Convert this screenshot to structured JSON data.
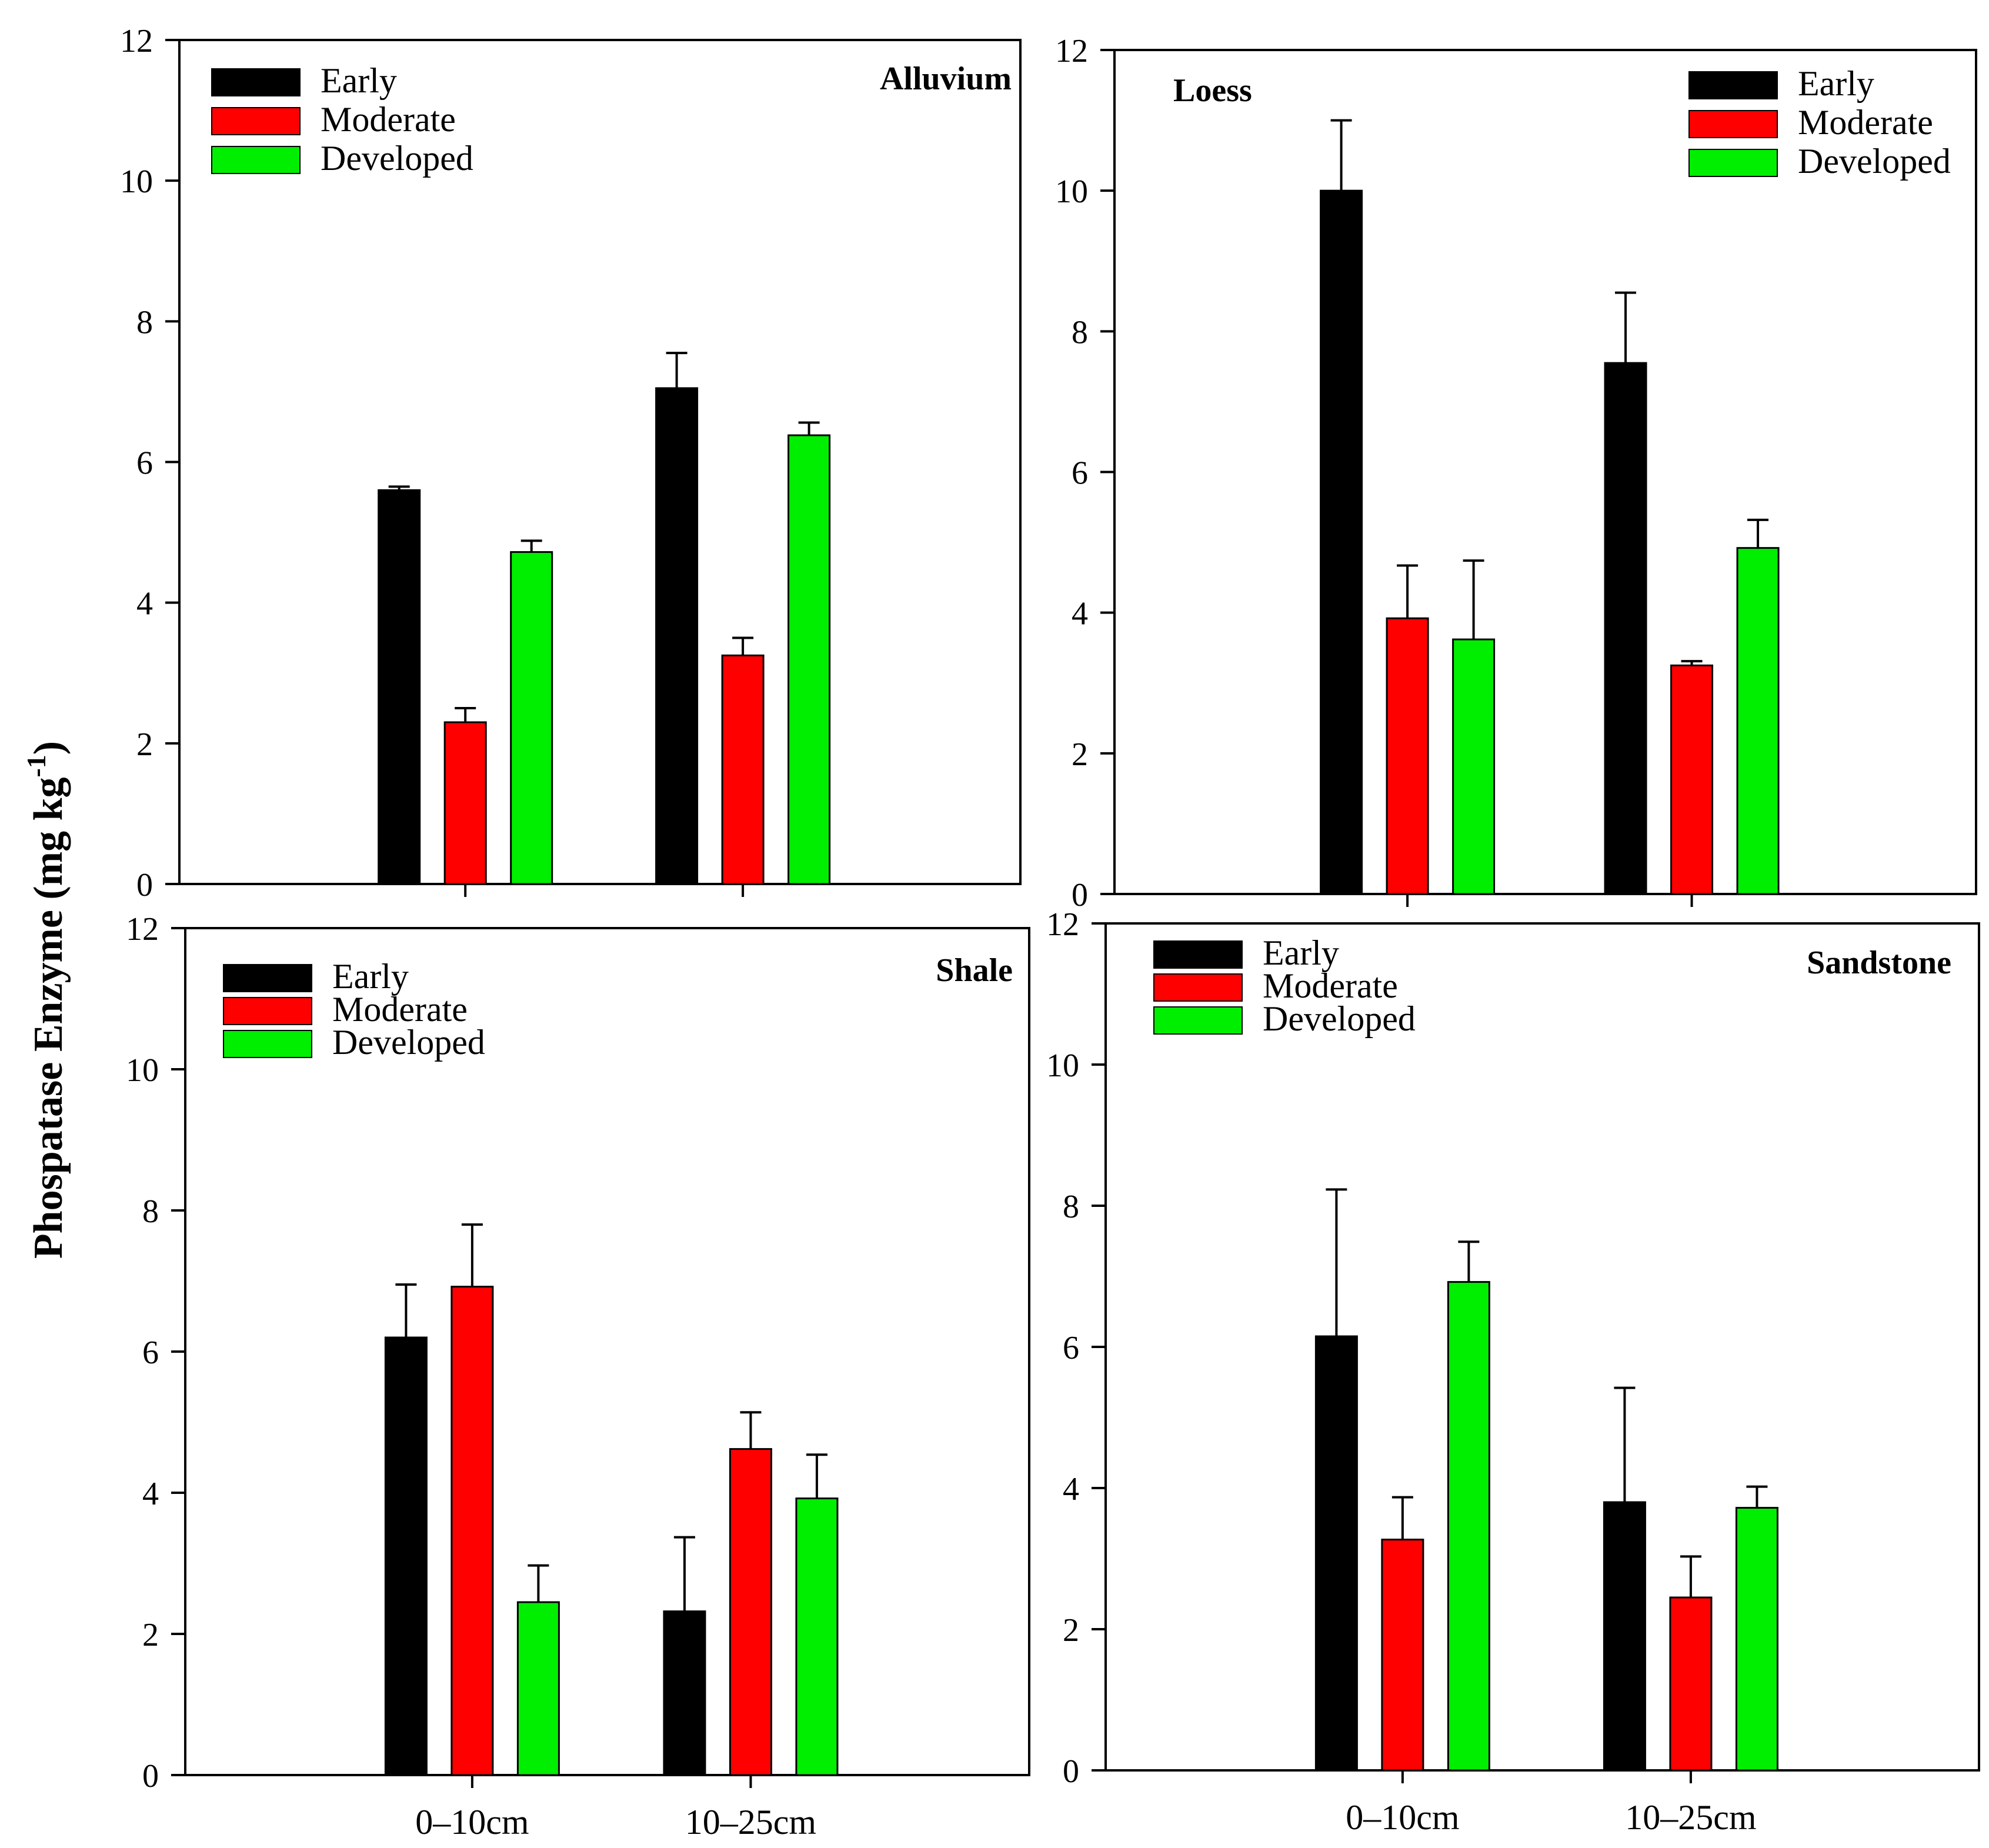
{
  "figure": {
    "y_axis_label": "Phospatase Enzyme (mg kg",
    "y_axis_label_sup": "-1",
    "y_axis_label_close": ")"
  },
  "legend": {
    "labels": [
      "Early",
      "Moderate",
      "Developed"
    ],
    "colors": [
      "#000000",
      "#ff0000",
      "#00ee00"
    ]
  },
  "chart_data": [
    {
      "type": "bar",
      "title": "Alluvium",
      "categories": [
        "0–10cm",
        "10–25cm"
      ],
      "ylim": [
        0,
        12
      ],
      "yticks": [
        0,
        2,
        4,
        6,
        8,
        10,
        12
      ],
      "show_category_labels": false,
      "series": [
        {
          "name": "Early",
          "values": [
            5.6,
            7.05
          ],
          "errors": [
            0.05,
            0.5
          ]
        },
        {
          "name": "Moderate",
          "values": [
            2.3,
            3.25
          ],
          "errors": [
            0.2,
            0.25
          ]
        },
        {
          "name": "Developed",
          "values": [
            4.72,
            6.38
          ],
          "errors": [
            0.16,
            0.18
          ]
        }
      ]
    },
    {
      "type": "bar",
      "title": "Loess",
      "categories": [
        "0–10cm",
        "10–25cm"
      ],
      "ylim": [
        0,
        12
      ],
      "yticks": [
        0,
        2,
        4,
        6,
        8,
        10,
        12
      ],
      "show_category_labels": false,
      "series": [
        {
          "name": "Early",
          "values": [
            10.0,
            7.55
          ],
          "errors": [
            1.0,
            1.0
          ]
        },
        {
          "name": "Moderate",
          "values": [
            3.92,
            3.25
          ],
          "errors": [
            0.75,
            0.06
          ]
        },
        {
          "name": "Developed",
          "values": [
            3.62,
            4.92
          ],
          "errors": [
            1.12,
            0.4
          ]
        }
      ]
    },
    {
      "type": "bar",
      "title": "Shale",
      "categories": [
        "0–10cm",
        "10–25cm"
      ],
      "ylim": [
        0,
        12
      ],
      "yticks": [
        0,
        2,
        4,
        6,
        8,
        10,
        12
      ],
      "show_category_labels": true,
      "series": [
        {
          "name": "Early",
          "values": [
            6.2,
            2.32
          ],
          "errors": [
            0.75,
            1.05
          ]
        },
        {
          "name": "Moderate",
          "values": [
            6.92,
            4.62
          ],
          "errors": [
            0.88,
            0.52
          ]
        },
        {
          "name": "Developed",
          "values": [
            2.45,
            3.92
          ],
          "errors": [
            0.52,
            0.62
          ]
        }
      ]
    },
    {
      "type": "bar",
      "title": "Sandstone",
      "categories": [
        "0–10cm",
        "10–25cm"
      ],
      "ylim": [
        0,
        12
      ],
      "yticks": [
        0,
        2,
        4,
        6,
        8,
        10,
        12
      ],
      "show_category_labels": true,
      "series": [
        {
          "name": "Early",
          "values": [
            6.15,
            3.8
          ],
          "errors": [
            2.08,
            1.62
          ]
        },
        {
          "name": "Moderate",
          "values": [
            3.27,
            2.45
          ],
          "errors": [
            0.6,
            0.58
          ]
        },
        {
          "name": "Developed",
          "values": [
            6.92,
            3.72
          ],
          "errors": [
            0.57,
            0.3
          ]
        }
      ]
    }
  ]
}
